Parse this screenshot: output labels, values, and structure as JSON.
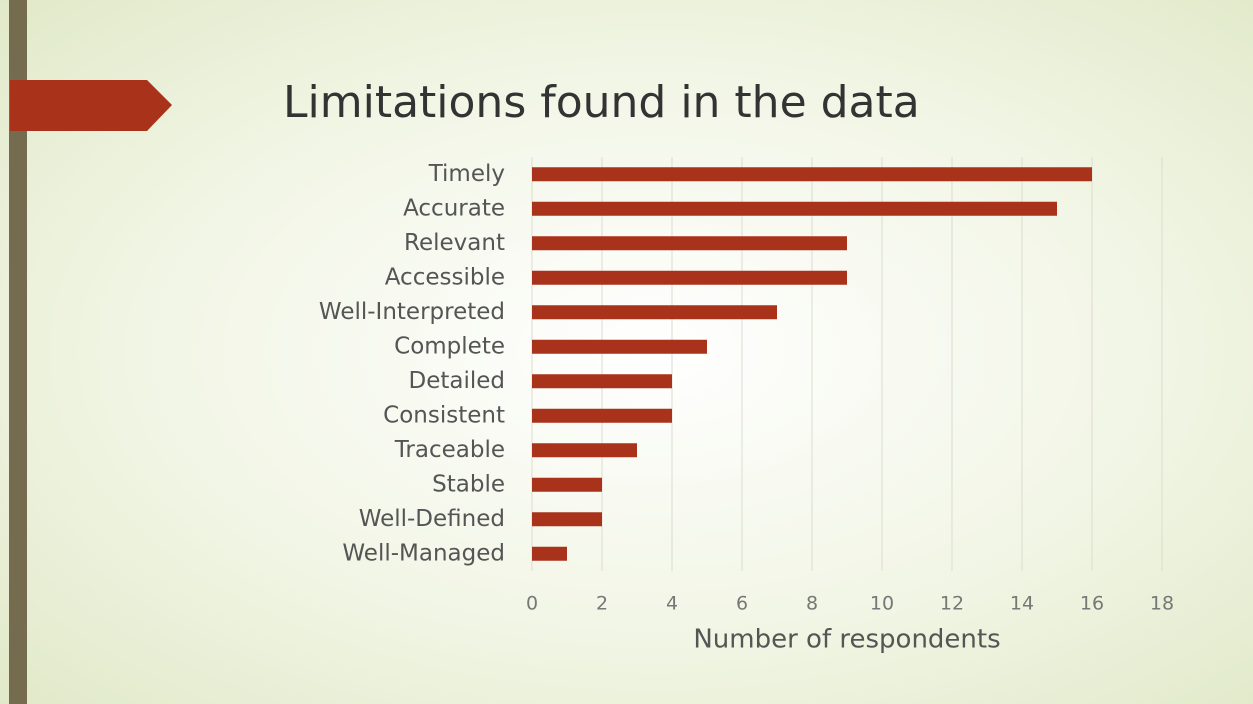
{
  "chart_data": {
    "type": "bar",
    "orientation": "horizontal",
    "title": "Limitations found in the data",
    "x_label": "Number of respondents",
    "categories": [
      "Timely",
      "Accurate",
      "Relevant",
      "Accessible",
      "Well-Interpreted",
      "Complete",
      "Detailed",
      "Consistent",
      "Traceable",
      "Stable",
      "Well-Defined",
      "Well-Managed"
    ],
    "values": [
      16,
      15,
      9,
      9,
      7,
      5,
      4,
      4,
      3,
      2,
      2,
      1
    ],
    "color": "#a8321a",
    "xlim": [
      0,
      18
    ],
    "xticks": [
      0,
      2,
      4,
      6,
      8,
      10,
      12,
      14,
      16,
      18
    ],
    "grid": true
  }
}
